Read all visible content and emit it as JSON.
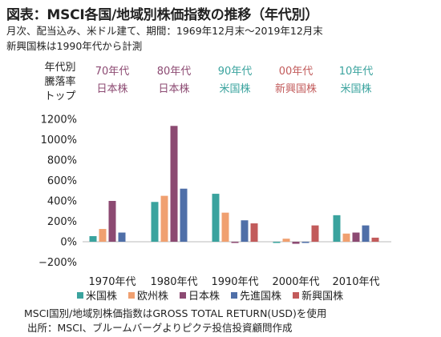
{
  "header": {
    "title": "図表：MSCI各国/地域別株価指数の推移（年代別）",
    "subtitle1": "月次、配当込み、米ドル建て、期間：1969年12月末～2019年12月末",
    "subtitle2": "新興国株は1990年代から計測"
  },
  "top_performers": {
    "label": "年代別 騰落率 トップ",
    "items": [
      {
        "decade": "70年代",
        "name": "日本株",
        "color": "#8c4a72"
      },
      {
        "decade": "80年代",
        "name": "日本株",
        "color": "#8c4a72"
      },
      {
        "decade": "90年代",
        "name": "米国株",
        "color": "#3aa39e"
      },
      {
        "decade": "00年代",
        "name": "新興国株",
        "color": "#c25b5b"
      },
      {
        "decade": "10年代",
        "name": "米国株",
        "color": "#3aa39e"
      }
    ]
  },
  "footer": {
    "note1": "MSCI国別/地域別株価指数はGROSS TOTAL RETURN(USD)を使用",
    "note2": "出所：MSCI、ブルームバーグよりピクテ投信投資顧問作成"
  },
  "chart_data": {
    "type": "bar",
    "categories": [
      "1970年代",
      "1980年代",
      "1990年代",
      "2000年代",
      "2010年代"
    ],
    "series": [
      {
        "name": "米国株",
        "color": "#3aa39e",
        "values": [
          55,
          390,
          470,
          -10,
          260
        ]
      },
      {
        "name": "欧州株",
        "color": "#f0a070",
        "values": [
          125,
          450,
          285,
          30,
          80
        ]
      },
      {
        "name": "日本株",
        "color": "#8c4a72",
        "values": [
          400,
          1135,
          -10,
          -20,
          90
        ]
      },
      {
        "name": "先進国株",
        "color": "#4f6fa8",
        "values": [
          90,
          520,
          210,
          0,
          160
        ]
      },
      {
        "name": "新興国株",
        "color": "#c25b5b",
        "values": [
          null,
          null,
          180,
          160,
          40
        ]
      }
    ],
    "yticks": [
      "1200%",
      "1000%",
      "800%",
      "600%",
      "400%",
      "200%",
      "0%",
      "−200%"
    ],
    "ylim": [
      -200,
      1200
    ],
    "xlabel": "",
    "ylabel": "",
    "grid": false,
    "legend_position": "bottom"
  }
}
